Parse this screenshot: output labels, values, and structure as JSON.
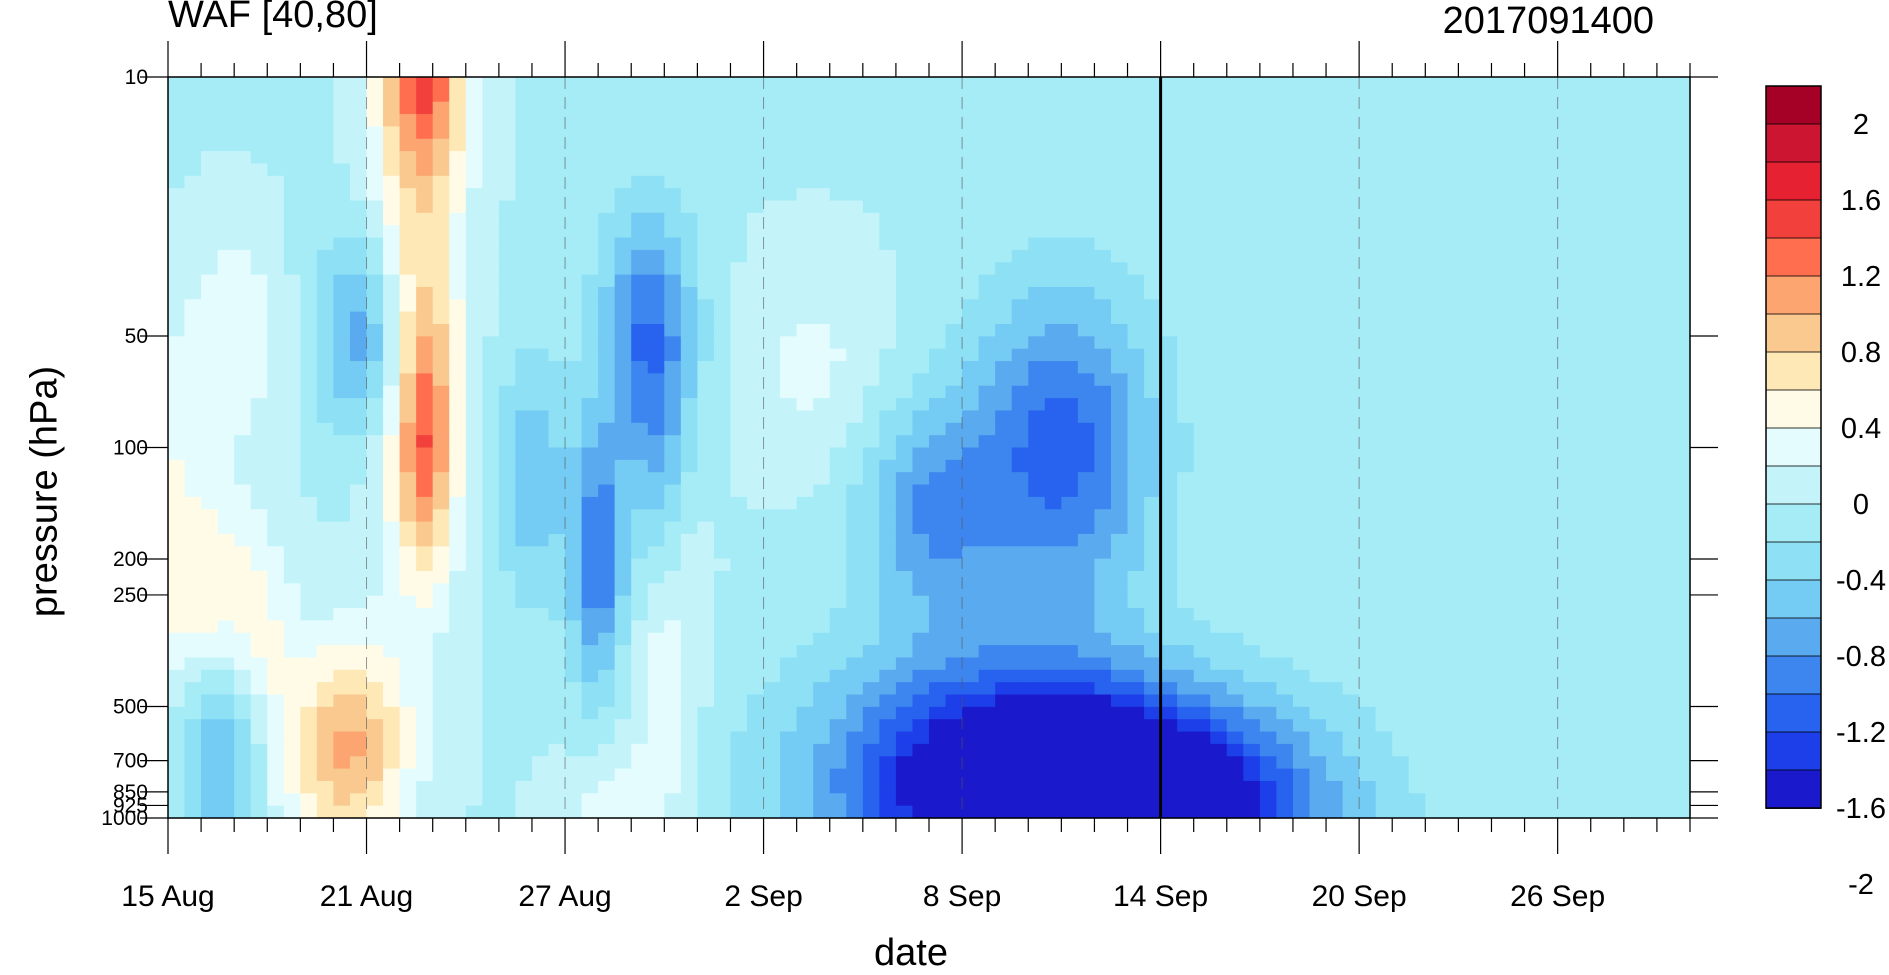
{
  "title_left": "WAF [40,80]",
  "title_right": "2017091400",
  "chart_data": {
    "type": "heatmap",
    "xlabel": "date",
    "ylabel": "pressure (hPa)",
    "x_ticks": [
      "15 Aug",
      "21 Aug",
      "27 Aug",
      "2 Sep",
      "8 Sep",
      "14 Sep",
      "20 Sep",
      "26 Sep"
    ],
    "y_ticks": [
      "10",
      "50",
      "100",
      "200",
      "250",
      "500",
      "700",
      "850",
      "925",
      "1000"
    ],
    "y_levels": [
      10,
      50,
      100,
      200,
      250,
      500,
      700,
      850,
      925,
      1000
    ],
    "x_range": [
      "15 Aug",
      "30 Sep"
    ],
    "marker_line": "14 Sep",
    "colorbar": {
      "labels": [
        "2",
        "1.6",
        "1.2",
        "0.8",
        "0.4",
        "0",
        "-0.4",
        "-0.8",
        "-1.2",
        "-1.6",
        "-2"
      ],
      "colors": [
        "#a50026",
        "#cc1530",
        "#e62232",
        "#f2413c",
        "#ff6f4f",
        "#fda570",
        "#f9c98f",
        "#fde8b6",
        "#fffbe6",
        "#e5fcff",
        "#c4f4fa",
        "#a6ecf7",
        "#8ee0f5",
        "#74cbf3",
        "#5aaaf0",
        "#3e86ef",
        "#2863ef",
        "#1c3fea",
        "#1a1acc"
      ]
    },
    "fields": {
      "blobs": [
        {
          "d": 7.8,
          "p": 10,
          "v": 1.2,
          "sx": 0.9,
          "sy": 0.9
        },
        {
          "d": 7.8,
          "p": 100,
          "v": 1.0,
          "sx": 0.6,
          "sy": 1.2
        },
        {
          "d": 7.5,
          "p": 40,
          "v": 0.9,
          "sx": 1.0,
          "sy": 2.5
        },
        {
          "d": 2.0,
          "p": 50,
          "v": 0.45,
          "sx": 1.0,
          "sy": 1.0
        },
        {
          "d": 1.0,
          "p": 250,
          "v": 0.65,
          "sx": 1.2,
          "sy": 1.0
        },
        {
          "d": 2.8,
          "p": 500,
          "v": 0.65,
          "sx": 0.8,
          "sy": 1.4
        },
        {
          "d": 5.5,
          "p": 600,
          "v": 0.8,
          "sx": 1.2,
          "sy": 1.0
        },
        {
          "d": 5.3,
          "p": 750,
          "v": 0.4,
          "sx": 1.5,
          "sy": 1.0
        },
        {
          "d": 15.0,
          "p": 350,
          "v": 0.5,
          "sx": 0.8,
          "sy": 1.5
        },
        {
          "d": 19.5,
          "p": 60,
          "v": 0.3,
          "sx": 1.5,
          "sy": 1.0
        },
        {
          "d": 0.0,
          "p": 100,
          "v": 0.35,
          "sx": 0.8,
          "sy": 1.2
        },
        {
          "d": 13.5,
          "p": 920,
          "v": 0.35,
          "sx": 1.2,
          "sy": 0.5
        },
        {
          "d": 6.0,
          "p": 50,
          "v": -0.9,
          "sx": 1.0,
          "sy": 1.0
        },
        {
          "d": 14.5,
          "p": 50,
          "v": -1.1,
          "sx": 1.0,
          "sy": 1.2
        },
        {
          "d": 13.0,
          "p": 200,
          "v": -1.1,
          "sx": 0.6,
          "sy": 1.2
        },
        {
          "d": 23.0,
          "p": 150,
          "v": -0.8,
          "sx": 1.5,
          "sy": 1.0
        },
        {
          "d": 27.0,
          "p": 100,
          "v": -1.2,
          "sx": 2.0,
          "sy": 1.5
        },
        {
          "d": 29.0,
          "p": 950,
          "v": -2.2,
          "sx": 4.0,
          "sy": 1.0
        },
        {
          "d": 25.0,
          "p": 750,
          "v": -1.4,
          "sx": 4.0,
          "sy": 1.2
        },
        {
          "d": 2.0,
          "p": 650,
          "v": -1.0,
          "sx": 1.0,
          "sy": 1.0
        },
        {
          "d": 11.0,
          "p": 120,
          "v": -0.6,
          "sx": 0.8,
          "sy": 1.2
        },
        {
          "d": 14.8,
          "p": 150,
          "v": -0.5,
          "sx": 0.6,
          "sy": 1.2
        }
      ]
    }
  }
}
